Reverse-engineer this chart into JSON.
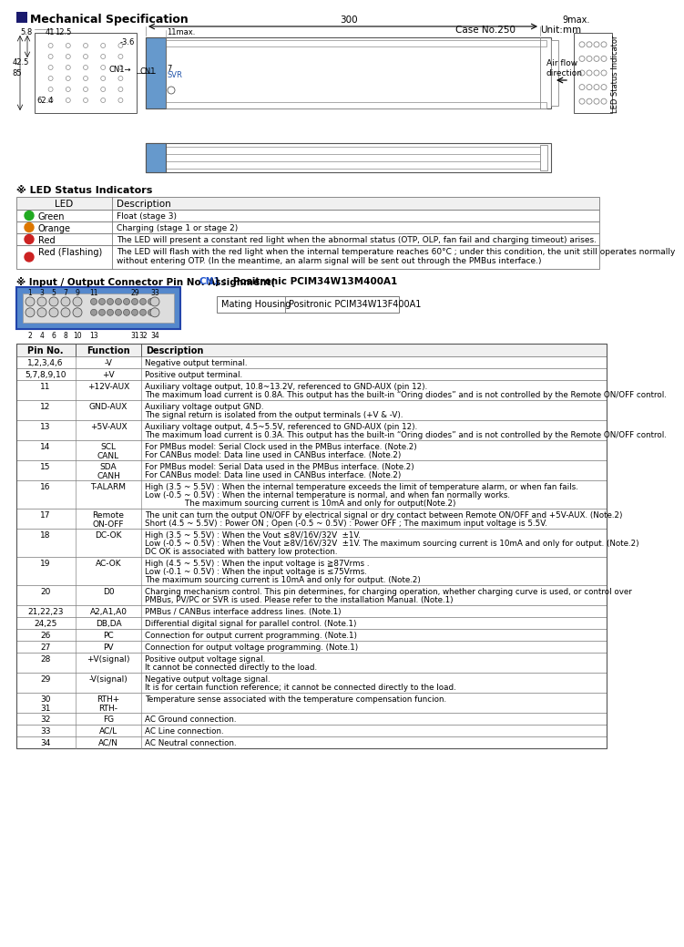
{
  "title": "Mechanical Specification",
  "case_info": "Case No.250",
  "unit_info": "Unit:mm",
  "bg_color": "#ffffff",
  "led_title": "※ LED Status Indicators",
  "led_headers": [
    "LED",
    "Description"
  ],
  "led_rows": [
    [
      "green",
      "Green",
      "Float (stage 3)"
    ],
    [
      "orange",
      "Orange",
      "Charging (stage 1 or stage 2)"
    ],
    [
      "red",
      "Red",
      "The LED will present a constant red light when the abnormal status (OTP, OLP, fan fail and charging timeout) arises."
    ],
    [
      "red",
      "Red (Flashing)",
      "The LED will flash with the red light when the internal temperature reaches 60°C ; under this condition, the unit still operates normally\nwithout entering OTP. (In the meantime, an alarm signal will be sent out through the PMBus interface.)"
    ]
  ],
  "connector_title_pre": "※ Input / Output Connector Pin No. Assignment(",
  "connector_title_cn1": "CN1",
  "connector_title_post": ") :  Positronic PCIM34W13M400A1",
  "mating_housing_label": "Mating Housing",
  "mating_housing": "Positronic PCIM34W13F400A1",
  "pin_headers": [
    "Pin No.",
    "Function",
    "Description"
  ],
  "pin_rows": [
    [
      "1,2,3,4,6",
      "-V",
      "Negative output terminal."
    ],
    [
      "5,7,8,9,10",
      "+V",
      "Positive output terminal."
    ],
    [
      "11",
      "+12V-AUX",
      "Auxiliary voltage output, 10.8~13.2V, referenced to GND-AUX (pin 12).\nThe maximum load current is 0.8A. This output has the built-in “Oring diodes” and is not controlled by the Remote ON/OFF control."
    ],
    [
      "12",
      "GND-AUX",
      "Auxiliary voltage output GND.\nThe signal return is isolated from the output terminals (+V & -V)."
    ],
    [
      "13",
      "+5V-AUX",
      "Auxiliary voltage output, 4.5~5.5V, referenced to GND-AUX (pin 12).\nThe maximum load current is 0.3A. This output has the built-in “Oring diodes” and is not controlled by the Remote ON/OFF control."
    ],
    [
      "14",
      "SCL\nCANL",
      "For PMBus model: Serial Clock used in the PMBus interface. (Note.2)\nFor CANBus model: Data line used in CANBus interface. (Note.2)"
    ],
    [
      "15",
      "SDA\nCANH",
      "For PMBus model: Serial Data used in the PMBus interface. (Note.2)\nFor CANBus model: Data line used in CANBus interface. (Note.2)"
    ],
    [
      "16",
      "T-ALARM",
      "High (3.5 ~ 5.5V) : When the internal temperature exceeds the limit of temperature alarm, or when fan fails.\nLow (-0.5 ~ 0.5V) : When the internal temperature is normal, and when fan normally works.\n                The maximum sourcing current is 10mA and only for output(Note.2)"
    ],
    [
      "17",
      "Remote\nON-OFF",
      "The unit can turn the output ON/OFF by electrical signal or dry contact between Remote ON/OFF and +5V-AUX. (Note.2)\nShort (4.5 ~ 5.5V) : Power ON ; Open (-0.5 ~ 0.5V) : Power OFF ; The maximum input voltage is 5.5V."
    ],
    [
      "18",
      "DC-OK",
      "High (3.5 ~ 5.5V) : When the Vout ≤8V/16V/32V  ±1V.\nLow (-0.5 ~ 0.5V) : When the Vout ≥8V/16V/32V  ±1V. The maximum sourcing current is 10mA and only for output. (Note.2)\nDC OK is associated with battery low protection."
    ],
    [
      "19",
      "AC-OK",
      "High (4.5 ~ 5.5V) : When the input voltage is ≧87Vrms .\nLow (-0.1 ~ 0.5V) : When the input voltage is ≤75Vrms.\nThe maximum sourcing current is 10mA and only for output. (Note.2)"
    ],
    [
      "20",
      "D0",
      "Charging mechanism control. This pin determines, for charging operation, whether charging curve is used, or control over\nPMBus, PV/PC or SVR is used. Please refer to the installation Manual. (Note.1)"
    ],
    [
      "21,22,23",
      "A2,A1,A0",
      "PMBus / CANBus interface address lines. (Note.1)"
    ],
    [
      "24,25",
      "DB,DA",
      "Differential digital signal for parallel control. (Note.1)"
    ],
    [
      "26",
      "PC",
      "Connection for output current programming. (Note.1)"
    ],
    [
      "27",
      "PV",
      "Connection for output voltage programming. (Note.1)"
    ],
    [
      "28",
      "+V(signal)",
      "Positive output voltage signal.\nIt cannot be connected directly to the load."
    ],
    [
      "29",
      "-V(signal)",
      "Negative output voltage signal.\nIt is for certain function reference; it cannot be connected directly to the load."
    ],
    [
      "30\n31",
      "RTH+\nRTH-",
      "Temperature sense associated with the temperature compensation funcion."
    ],
    [
      "32",
      "FG",
      "AC Ground connection."
    ],
    [
      "33",
      "AC/L",
      "AC Line connection."
    ],
    [
      "34",
      "AC/N",
      "AC Neutral connection."
    ]
  ]
}
